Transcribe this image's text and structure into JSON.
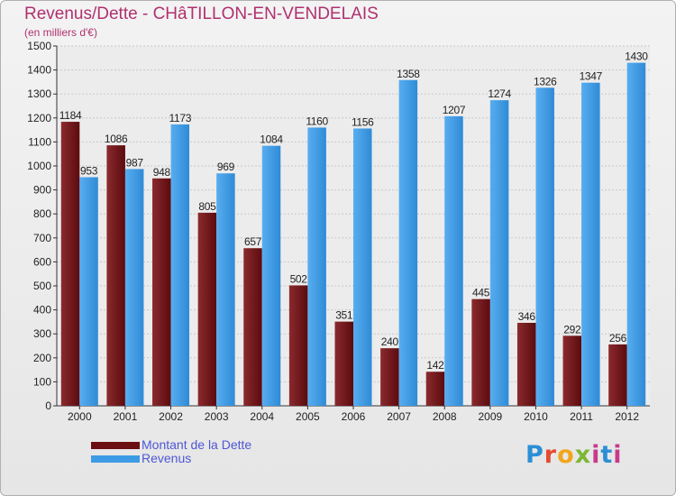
{
  "header": {
    "title": "Revenus/Dette - CHâTILLON-EN-VENDELAIS",
    "subtitle": "(en milliers d'€)"
  },
  "logo": {
    "text": "Proxiti"
  },
  "colors": {
    "dette": "#6b0f12",
    "revenus": "#3d9be5",
    "title": "#b0306f",
    "legend_text": "#4f57d3"
  },
  "chart_data": {
    "type": "bar",
    "title": "Revenus/Dette - CHâTILLON-EN-VENDELAIS",
    "ylabel": "(en milliers d'€)",
    "xlabel": "",
    "ylim": [
      0,
      1500
    ],
    "yticks": [
      0,
      100,
      200,
      300,
      400,
      500,
      600,
      700,
      800,
      900,
      1000,
      1100,
      1200,
      1300,
      1400,
      1500
    ],
    "grid": true,
    "legend_position": "bottom-left",
    "categories": [
      "2000",
      "2001",
      "2002",
      "2003",
      "2004",
      "2005",
      "2006",
      "2007",
      "2008",
      "2009",
      "2010",
      "2011",
      "2012"
    ],
    "series": [
      {
        "name": "Montant de la Dette",
        "values": [
          1184,
          1086,
          948,
          805,
          657,
          502,
          351,
          240,
          142,
          445,
          346,
          292,
          256
        ]
      },
      {
        "name": "Revenus",
        "values": [
          953,
          987,
          1173,
          969,
          1084,
          1160,
          1156,
          1358,
          1207,
          1274,
          1326,
          1347,
          1430
        ]
      }
    ]
  }
}
